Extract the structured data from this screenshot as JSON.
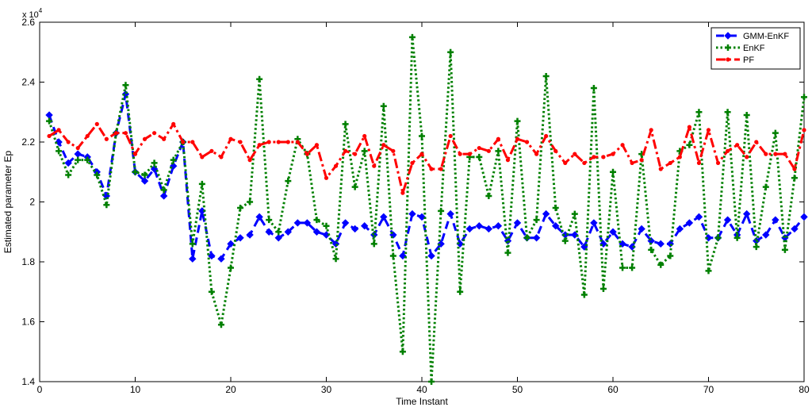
{
  "chart_data": {
    "type": "line",
    "xlabel": "Time Instant",
    "ylabel": "Estimated parameter Ep",
    "y_exponent_label": "x 10",
    "y_exponent_power": "4",
    "xlim": [
      0,
      80
    ],
    "ylim": [
      1.4,
      2.6
    ],
    "x_ticks": [
      0,
      10,
      20,
      30,
      40,
      50,
      60,
      70,
      80
    ],
    "y_ticks": [
      1.4,
      1.6,
      1.8,
      2.0,
      2.2,
      2.4,
      2.6
    ],
    "y_tick_labels": [
      "1.4",
      "1.6",
      "1.8",
      "2",
      "2.2",
      "2.4",
      "2.6"
    ],
    "grid": false,
    "legend_position": "top-right",
    "x": [
      1,
      2,
      3,
      4,
      5,
      6,
      7,
      8,
      9,
      10,
      11,
      12,
      13,
      14,
      15,
      16,
      17,
      18,
      19,
      20,
      21,
      22,
      23,
      24,
      25,
      26,
      27,
      28,
      29,
      30,
      31,
      32,
      33,
      34,
      35,
      36,
      37,
      38,
      39,
      40,
      41,
      42,
      43,
      44,
      45,
      46,
      47,
      48,
      49,
      50,
      51,
      52,
      53,
      54,
      55,
      56,
      57,
      58,
      59,
      60,
      61,
      62,
      63,
      64,
      65,
      66,
      67,
      68,
      69,
      70,
      71,
      72,
      73,
      74,
      75,
      76,
      77,
      78,
      79,
      80
    ],
    "series": [
      {
        "name": "GMM-EnKF",
        "color": "#0000ff",
        "marker": "diamond",
        "values": [
          2.29,
          2.2,
          2.13,
          2.16,
          2.15,
          2.1,
          2.02,
          2.23,
          2.36,
          2.1,
          2.07,
          2.11,
          2.02,
          2.12,
          2.2,
          1.81,
          1.97,
          1.82,
          1.81,
          1.86,
          1.88,
          1.89,
          1.95,
          1.9,
          1.88,
          1.9,
          1.93,
          1.93,
          1.9,
          1.89,
          1.86,
          1.93,
          1.91,
          1.92,
          1.89,
          1.95,
          1.89,
          1.82,
          1.96,
          1.95,
          1.82,
          1.86,
          1.96,
          1.86,
          1.91,
          1.92,
          1.91,
          1.92,
          1.87,
          1.93,
          1.88,
          1.88,
          1.96,
          1.92,
          1.89,
          1.89,
          1.85,
          1.93,
          1.86,
          1.9,
          1.86,
          1.85,
          1.91,
          1.87,
          1.86,
          1.86,
          1.91,
          1.93,
          1.95,
          1.88,
          1.88,
          1.94,
          1.89,
          1.96,
          1.87,
          1.89,
          1.94,
          1.88,
          1.91,
          1.95
        ]
      },
      {
        "name": "EnKF",
        "color": "#008000",
        "marker": "plus",
        "values": [
          2.27,
          2.17,
          2.09,
          2.14,
          2.14,
          2.09,
          1.99,
          2.23,
          2.39,
          2.1,
          2.09,
          2.13,
          2.04,
          2.14,
          2.2,
          1.86,
          2.06,
          1.7,
          1.59,
          1.78,
          1.98,
          2.0,
          2.41,
          1.94,
          1.9,
          2.07,
          2.21,
          2.16,
          1.94,
          1.92,
          1.81,
          2.26,
          2.05,
          2.17,
          1.86,
          2.32,
          1.82,
          1.5,
          2.55,
          2.22,
          1.4,
          1.97,
          2.5,
          1.7,
          2.15,
          2.15,
          2.02,
          2.17,
          1.83,
          2.27,
          1.88,
          1.94,
          2.42,
          1.98,
          1.87,
          1.96,
          1.69,
          2.38,
          1.71,
          2.1,
          1.78,
          1.78,
          2.16,
          1.84,
          1.79,
          1.82,
          2.17,
          2.19,
          2.3,
          1.77,
          1.88,
          2.3,
          1.88,
          2.29,
          1.85,
          2.05,
          2.23,
          1.84,
          2.08,
          2.35
        ]
      },
      {
        "name": "PF",
        "color": "#ff0000",
        "marker": "dot",
        "values": [
          2.22,
          2.24,
          2.2,
          2.18,
          2.22,
          2.26,
          2.21,
          2.23,
          2.23,
          2.16,
          2.21,
          2.23,
          2.21,
          2.26,
          2.2,
          2.2,
          2.15,
          2.17,
          2.15,
          2.21,
          2.2,
          2.14,
          2.19,
          2.2,
          2.2,
          2.2,
          2.2,
          2.16,
          2.19,
          2.08,
          2.12,
          2.17,
          2.16,
          2.22,
          2.12,
          2.19,
          2.17,
          2.03,
          2.13,
          2.16,
          2.11,
          2.11,
          2.22,
          2.16,
          2.16,
          2.18,
          2.17,
          2.21,
          2.14,
          2.21,
          2.2,
          2.16,
          2.22,
          2.17,
          2.13,
          2.16,
          2.13,
          2.15,
          2.15,
          2.16,
          2.19,
          2.13,
          2.14,
          2.24,
          2.11,
          2.13,
          2.15,
          2.25,
          2.13,
          2.24,
          2.13,
          2.17,
          2.19,
          2.15,
          2.2,
          2.16,
          2.16,
          2.16,
          2.11,
          2.24
        ]
      }
    ]
  }
}
